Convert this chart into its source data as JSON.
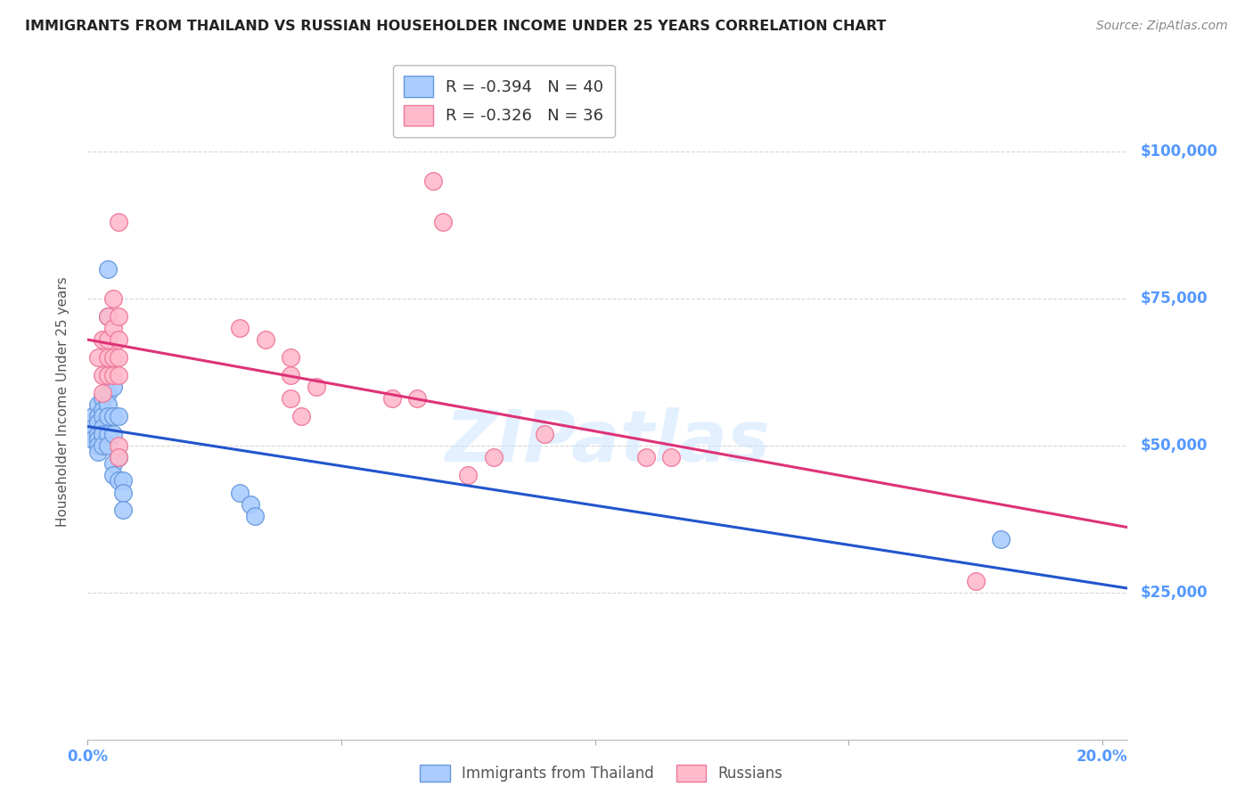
{
  "title": "IMMIGRANTS FROM THAILAND VS RUSSIAN HOUSEHOLDER INCOME UNDER 25 YEARS CORRELATION CHART",
  "source": "Source: ZipAtlas.com",
  "ylabel": "Householder Income Under 25 years",
  "ylim": [
    0,
    115000
  ],
  "xlim": [
    0.0,
    0.205
  ],
  "yticks": [
    0,
    25000,
    50000,
    75000,
    100000
  ],
  "ytick_labels": [
    "",
    "$25,000",
    "$50,000",
    "$75,000",
    "$100,000"
  ],
  "xticks": [
    0.0,
    0.05,
    0.1,
    0.15,
    0.2
  ],
  "xtick_labels": [
    "0.0%",
    "",
    "",
    "",
    "20.0%"
  ],
  "legend_r_thailand": "-0.394",
  "legend_n_thailand": "40",
  "legend_r_russian": "-0.326",
  "legend_n_russian": "36",
  "background_color": "#ffffff",
  "grid_color": "#cccccc",
  "title_color": "#222222",
  "right_label_color": "#5599ff",
  "thailand_color": "#aaccff",
  "thailand_edge_color": "#6699dd",
  "russian_color": "#ffbbcc",
  "russian_edge_color": "#ee7799",
  "thailand_line_color": "#2255cc",
  "russian_line_color": "#dd3377",
  "thailand_scatter": [
    [
      0.001,
      55000
    ],
    [
      0.001,
      53000
    ],
    [
      0.001,
      52000
    ],
    [
      0.001,
      51000
    ],
    [
      0.002,
      57000
    ],
    [
      0.002,
      55000
    ],
    [
      0.002,
      54000
    ],
    [
      0.002,
      52000
    ],
    [
      0.002,
      51000
    ],
    [
      0.002,
      50000
    ],
    [
      0.002,
      49000
    ],
    [
      0.003,
      58000
    ],
    [
      0.003,
      56000
    ],
    [
      0.003,
      55000
    ],
    [
      0.003,
      53000
    ],
    [
      0.003,
      52000
    ],
    [
      0.003,
      50000
    ],
    [
      0.004,
      80000
    ],
    [
      0.004,
      72000
    ],
    [
      0.004,
      62000
    ],
    [
      0.004,
      59000
    ],
    [
      0.004,
      57000
    ],
    [
      0.004,
      55000
    ],
    [
      0.004,
      52000
    ],
    [
      0.004,
      50000
    ],
    [
      0.005,
      60000
    ],
    [
      0.005,
      55000
    ],
    [
      0.005,
      52000
    ],
    [
      0.005,
      47000
    ],
    [
      0.005,
      45000
    ],
    [
      0.006,
      55000
    ],
    [
      0.006,
      48000
    ],
    [
      0.006,
      44000
    ],
    [
      0.007,
      44000
    ],
    [
      0.007,
      42000
    ],
    [
      0.007,
      39000
    ],
    [
      0.03,
      42000
    ],
    [
      0.032,
      40000
    ],
    [
      0.033,
      38000
    ],
    [
      0.18,
      34000
    ]
  ],
  "russian_scatter": [
    [
      0.002,
      65000
    ],
    [
      0.003,
      68000
    ],
    [
      0.003,
      62000
    ],
    [
      0.003,
      59000
    ],
    [
      0.004,
      72000
    ],
    [
      0.004,
      68000
    ],
    [
      0.004,
      65000
    ],
    [
      0.004,
      62000
    ],
    [
      0.005,
      75000
    ],
    [
      0.005,
      70000
    ],
    [
      0.005,
      65000
    ],
    [
      0.005,
      62000
    ],
    [
      0.006,
      88000
    ],
    [
      0.006,
      72000
    ],
    [
      0.006,
      68000
    ],
    [
      0.006,
      65000
    ],
    [
      0.006,
      62000
    ],
    [
      0.006,
      50000
    ],
    [
      0.006,
      48000
    ],
    [
      0.03,
      70000
    ],
    [
      0.035,
      68000
    ],
    [
      0.04,
      65000
    ],
    [
      0.04,
      62000
    ],
    [
      0.04,
      58000
    ],
    [
      0.042,
      55000
    ],
    [
      0.045,
      60000
    ],
    [
      0.06,
      58000
    ],
    [
      0.065,
      58000
    ],
    [
      0.068,
      95000
    ],
    [
      0.07,
      88000
    ],
    [
      0.075,
      45000
    ],
    [
      0.08,
      48000
    ],
    [
      0.09,
      52000
    ],
    [
      0.11,
      48000
    ],
    [
      0.115,
      48000
    ],
    [
      0.175,
      27000
    ]
  ],
  "watermark": "ZIPatlas",
  "marker_size": 200
}
